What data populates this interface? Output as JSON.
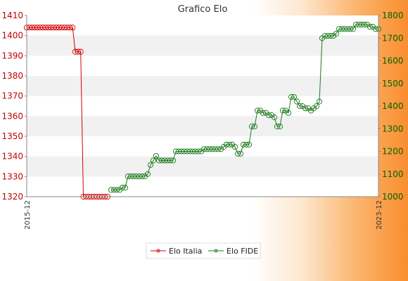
{
  "chart_data": {
    "type": "line",
    "title": "Grafico Elo",
    "xlabel": "",
    "ylabel": "",
    "x_tick_labels": {
      "first": "2015-12",
      "last": "2023-12"
    },
    "ylim_left": [
      1320,
      1410
    ],
    "ylim_right": [
      1000,
      1800
    ],
    "left_ticks": [
      1320,
      1330,
      1340,
      1350,
      1360,
      1370,
      1380,
      1390,
      1400,
      1410
    ],
    "right_ticks": [
      1000,
      1100,
      1200,
      1300,
      1400,
      1500,
      1600,
      1700,
      1800
    ],
    "grid": "horizontal bands",
    "legend_position": "bottom-center",
    "series": [
      {
        "name": "Elo Italia",
        "axis": "left",
        "color": "#d40000",
        "values": [
          1404,
          1404,
          1404,
          1404,
          1404,
          1404,
          1404,
          1404,
          1404,
          1404,
          1404,
          1404,
          1404,
          1404,
          1404,
          1404,
          1404,
          1404,
          1392,
          1392,
          1392,
          1320,
          1320,
          1320,
          1320,
          1320,
          1320,
          1320,
          1320,
          1320,
          1320
        ]
      },
      {
        "name": "Elo FIDE",
        "axis": "right",
        "color": "#1a7a1a",
        "values": [
          1030,
          1030,
          1030,
          1030,
          1040,
          1040,
          1090,
          1090,
          1090,
          1090,
          1090,
          1090,
          1090,
          1100,
          1140,
          1160,
          1180,
          1160,
          1160,
          1160,
          1160,
          1160,
          1160,
          1200,
          1200,
          1200,
          1200,
          1200,
          1200,
          1200,
          1200,
          1200,
          1200,
          1210,
          1210,
          1210,
          1210,
          1210,
          1210,
          1210,
          1220,
          1230,
          1230,
          1230,
          1220,
          1190,
          1190,
          1230,
          1230,
          1230,
          1310,
          1310,
          1380,
          1380,
          1370,
          1370,
          1360,
          1360,
          1350,
          1310,
          1310,
          1380,
          1380,
          1370,
          1440,
          1440,
          1420,
          1400,
          1400,
          1390,
          1390,
          1380,
          1390,
          1400,
          1420,
          1700,
          1710,
          1710,
          1710,
          1710,
          1720,
          1740,
          1740,
          1740,
          1740,
          1740,
          1740,
          1760,
          1760,
          1760,
          1760,
          1760,
          1750,
          1750,
          1740,
          1740
        ]
      }
    ]
  }
}
